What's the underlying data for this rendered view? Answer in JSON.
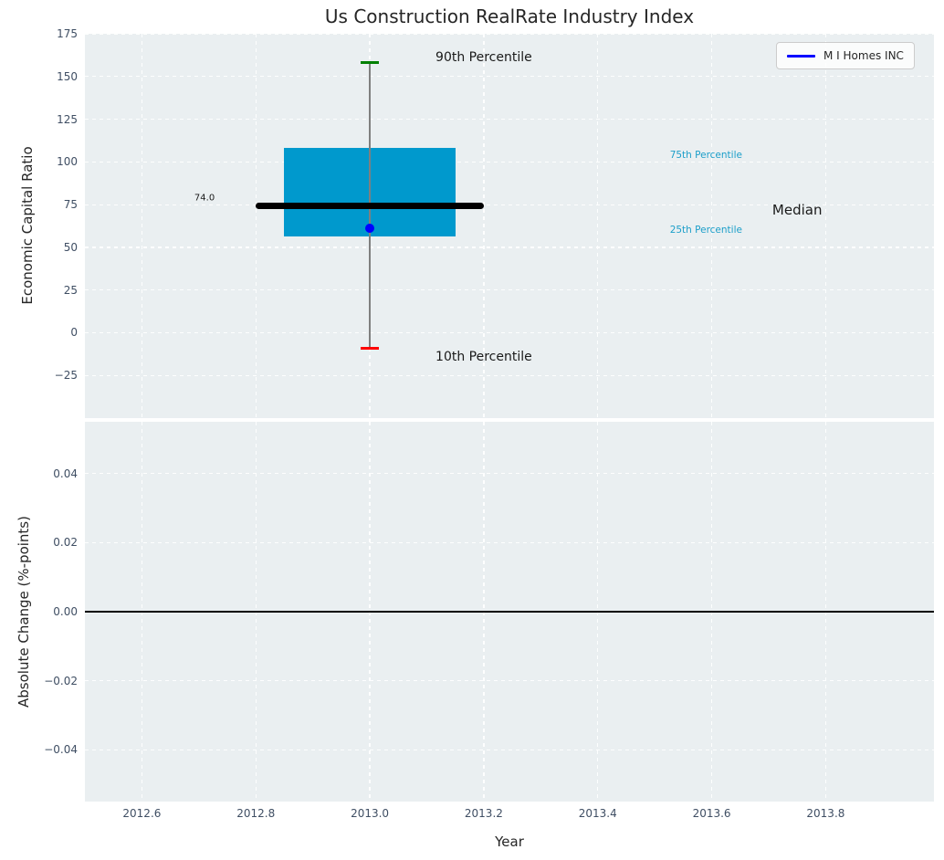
{
  "title": "Us Construction RealRate Industry Index",
  "legend": {
    "label": "M I Homes INC",
    "line_color": "#0000ff"
  },
  "colors": {
    "plot_bg": "#eaeff1",
    "grid": "#fdfefe",
    "tick_label": "#3f4e63",
    "text": "#262626",
    "box_fill": "#0099cd",
    "median_line": "#000000",
    "whisker": "#7f7f7f",
    "cap_90": "#008000",
    "cap_10": "#ff0000",
    "company_dot": "#0000ff",
    "percentile_label": "#1b9ec9",
    "zero_line": "#000000"
  },
  "chart_data": [
    {
      "type": "box",
      "title": "Us Construction RealRate Industry Index",
      "xlabel": "",
      "ylabel": "Economic Capital Ratio",
      "xlim": [
        2012.5,
        2013.99
      ],
      "ylim": [
        -50,
        175
      ],
      "grid": true,
      "legend_position": "upper right",
      "xticks": [
        {
          "v": 2012.6,
          "label": "2012.6"
        },
        {
          "v": 2012.8,
          "label": "2012.8"
        },
        {
          "v": 2013.0,
          "label": "2013.0"
        },
        {
          "v": 2013.2,
          "label": "2013.2"
        },
        {
          "v": 2013.4,
          "label": "2013.4"
        },
        {
          "v": 2013.6,
          "label": "2013.6"
        },
        {
          "v": 2013.8,
          "label": "2013.8"
        }
      ],
      "yticks": [
        {
          "v": 175,
          "label": "175"
        },
        {
          "v": 150,
          "label": "150"
        },
        {
          "v": 125,
          "label": "125"
        },
        {
          "v": 100,
          "label": "100"
        },
        {
          "v": 75,
          "label": "75"
        },
        {
          "v": 50,
          "label": "50"
        },
        {
          "v": 25,
          "label": "25"
        },
        {
          "v": 0,
          "label": "0"
        },
        {
          "v": -25,
          "label": "−25"
        }
      ],
      "box": {
        "x": 2013.0,
        "p90": 158,
        "p75": 108,
        "median": 74,
        "median_label": "74.0",
        "p25": 56.5,
        "p10": -9,
        "company": {
          "name": "M I Homes INC",
          "value": 61
        },
        "box_halfwidth_years": 0.15,
        "median_halfwidth_years": 0.2,
        "cap_halfwidth_years": 0.016
      },
      "annotations": [
        {
          "text": "90th Percentile",
          "x": 2013.2,
          "y": 161,
          "color": "#1a1a1a",
          "size": 14
        },
        {
          "text": "10th Percentile",
          "x": 2013.2,
          "y": -14,
          "color": "#1a1a1a",
          "size": 14
        },
        {
          "text": "75th Percentile",
          "x": 2013.59,
          "y": 104,
          "color": "#1b9ec9",
          "size": 10.5
        },
        {
          "text": "25th Percentile",
          "x": 2013.59,
          "y": 60,
          "color": "#1b9ec9",
          "size": 10.5
        },
        {
          "text": "Median",
          "x": 2013.75,
          "y": 72,
          "color": "#1a1a1a",
          "size": 15
        },
        {
          "text": "74.0",
          "x": 2012.71,
          "y": 79,
          "color": "#1a1a1a",
          "size": 10
        }
      ]
    },
    {
      "type": "line",
      "title": "",
      "xlabel": "Year",
      "ylabel": "Absolute Change (%-points)",
      "xlim": [
        2012.5,
        2013.99
      ],
      "ylim": [
        -0.055,
        0.055
      ],
      "grid": true,
      "series": [],
      "zero_line": 0.0,
      "xticks": [
        {
          "v": 2012.6,
          "label": "2012.6"
        },
        {
          "v": 2012.8,
          "label": "2012.8"
        },
        {
          "v": 2013.0,
          "label": "2013.0"
        },
        {
          "v": 2013.2,
          "label": "2013.2"
        },
        {
          "v": 2013.4,
          "label": "2013.4"
        },
        {
          "v": 2013.6,
          "label": "2013.6"
        },
        {
          "v": 2013.8,
          "label": "2013.8"
        }
      ],
      "yticks": [
        {
          "v": 0.04,
          "label": "0.04"
        },
        {
          "v": 0.02,
          "label": "0.02"
        },
        {
          "v": 0.0,
          "label": "0.00"
        },
        {
          "v": -0.02,
          "label": "−0.02"
        },
        {
          "v": -0.04,
          "label": "−0.04"
        }
      ]
    }
  ]
}
